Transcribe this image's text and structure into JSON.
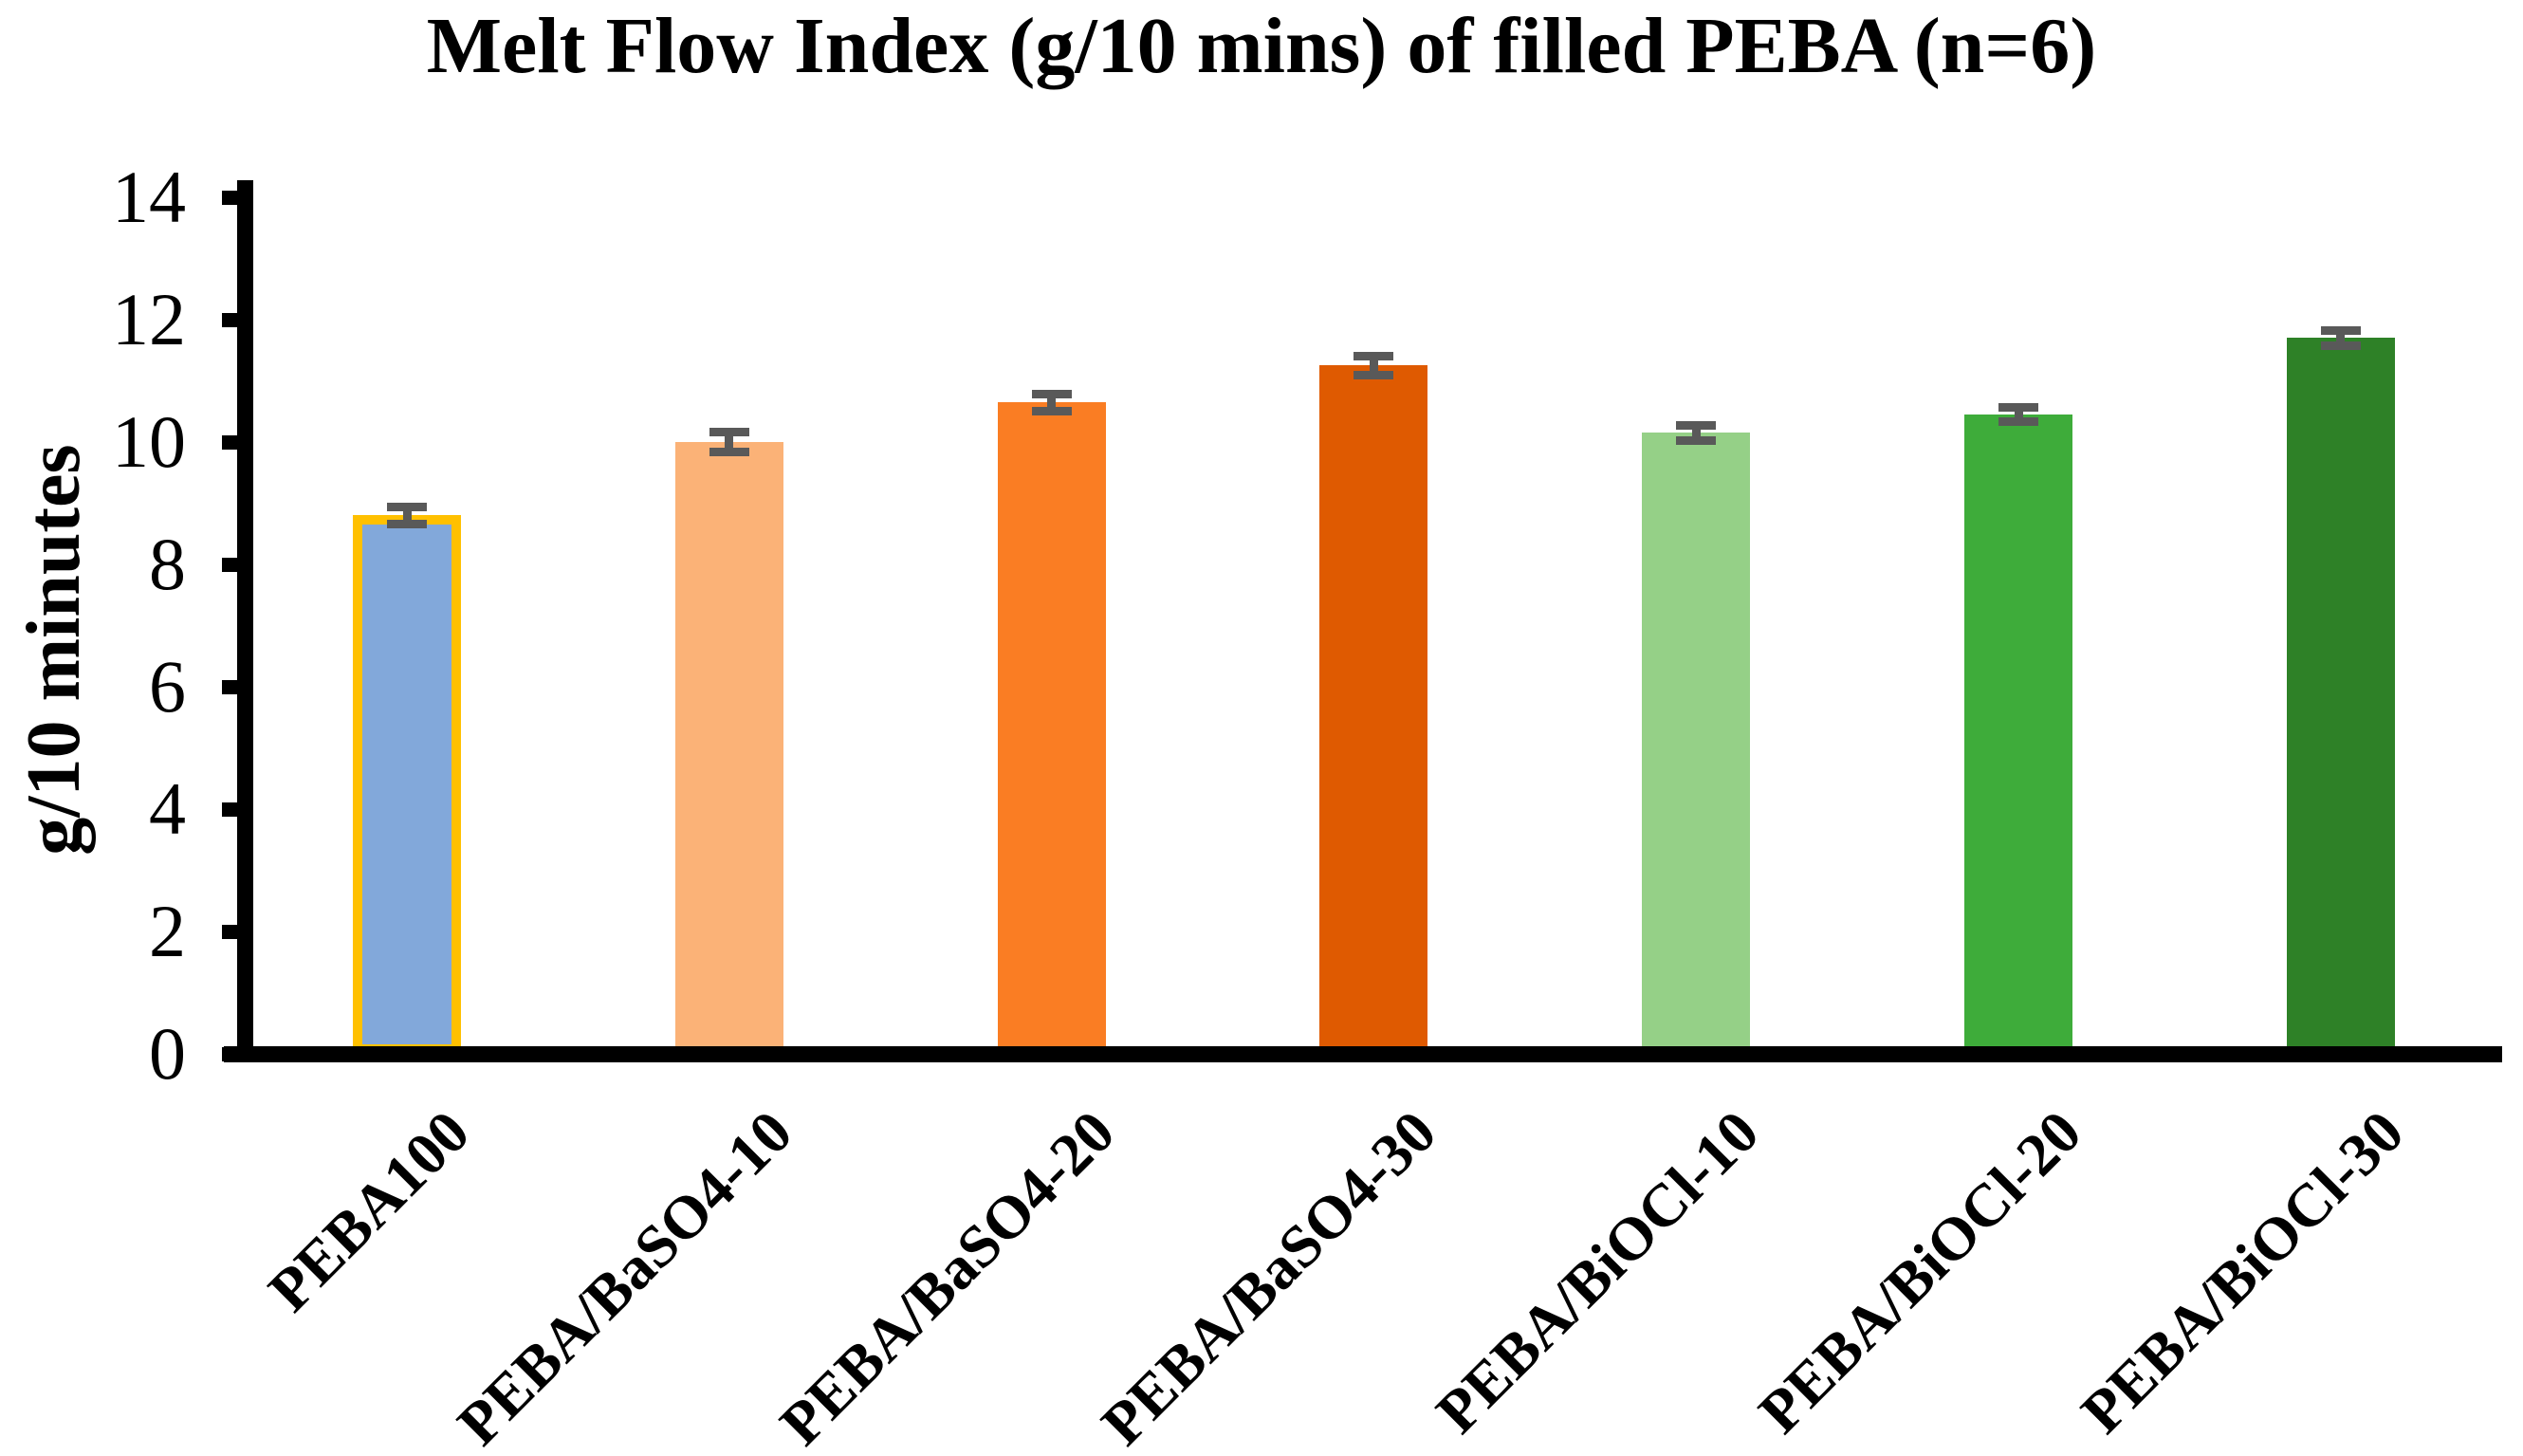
{
  "chart_data": {
    "type": "bar",
    "title": "Melt Flow Index (g/10 mins) of filled PEBA (n=6)",
    "xlabel": "",
    "ylabel": "g/10 minutes",
    "ylim": [
      0,
      14
    ],
    "yticks": [
      0,
      2,
      4,
      6,
      8,
      10,
      12,
      14
    ],
    "grid": false,
    "legend": "none",
    "categories": [
      "PEBA100",
      "PEBA/BaSO4-10",
      "PEBA/BaSO4-20",
      "PEBA/BaSO4-30",
      "PEBA/BiOCl-10",
      "PEBA/BiOCl-20",
      "PEBA/BiOCl-30"
    ],
    "values": [
      8.8,
      10.0,
      10.65,
      11.25,
      10.15,
      10.45,
      11.7
    ],
    "error_bars": [
      0.14,
      0.17,
      0.14,
      0.15,
      0.12,
      0.12,
      0.12
    ],
    "bar_colors": [
      "#82A8DA",
      "#FBB277",
      "#FA7D23",
      "#DF5A01",
      "#95D087",
      "#3EAC3A",
      "#2E8127"
    ],
    "highlight_bar_index": 0,
    "highlight_outline_color": "#FFC000",
    "error_bar_color": "#595959",
    "axis_color": "#000000"
  }
}
